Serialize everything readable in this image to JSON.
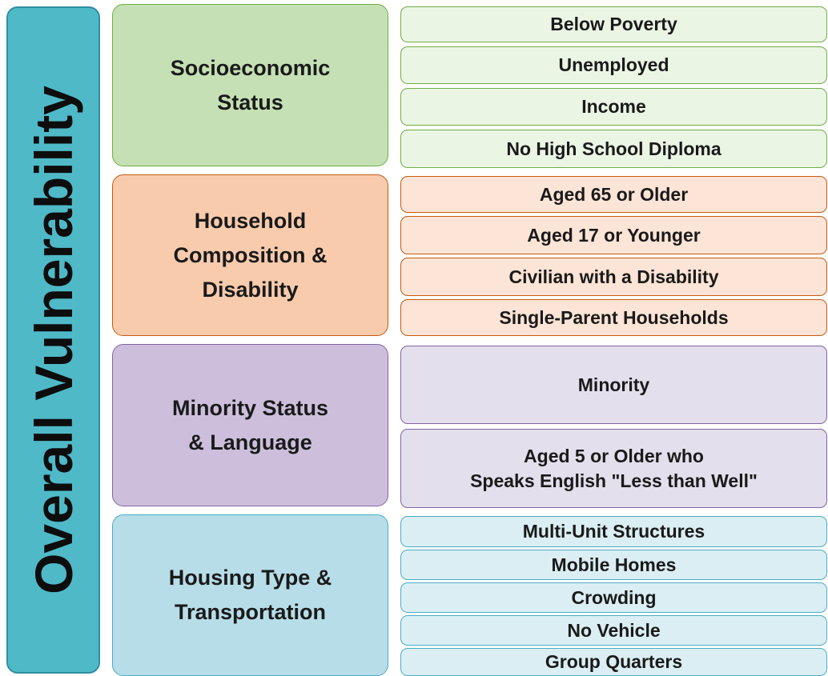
{
  "title": "Overall Vulnerability",
  "themes": [
    {
      "label": [
        "Socioeconomic",
        "Status"
      ],
      "variables": [
        [
          "Below Poverty"
        ],
        [
          "Unemployed"
        ],
        [
          "Income"
        ],
        [
          "No High School Diploma"
        ]
      ]
    },
    {
      "label": [
        "Household",
        "Composition &",
        "Disability"
      ],
      "variables": [
        [
          "Aged 65 or Older"
        ],
        [
          "Aged 17 or Younger"
        ],
        [
          "Civilian with a Disability"
        ],
        [
          "Single-Parent Households"
        ]
      ]
    },
    {
      "label": [
        "Minority Status",
        "& Language"
      ],
      "variables": [
        [
          "Minority"
        ],
        [
          "Aged 5 or Older who",
          "Speaks English \"Less than Well\""
        ]
      ]
    },
    {
      "label": [
        "Housing Type &",
        "Transportation"
      ],
      "variables": [
        [
          "Multi-Unit Structures"
        ],
        [
          "Mobile Homes"
        ],
        [
          "Crowding"
        ],
        [
          "No Vehicle"
        ],
        [
          "Group Quarters"
        ]
      ]
    }
  ]
}
